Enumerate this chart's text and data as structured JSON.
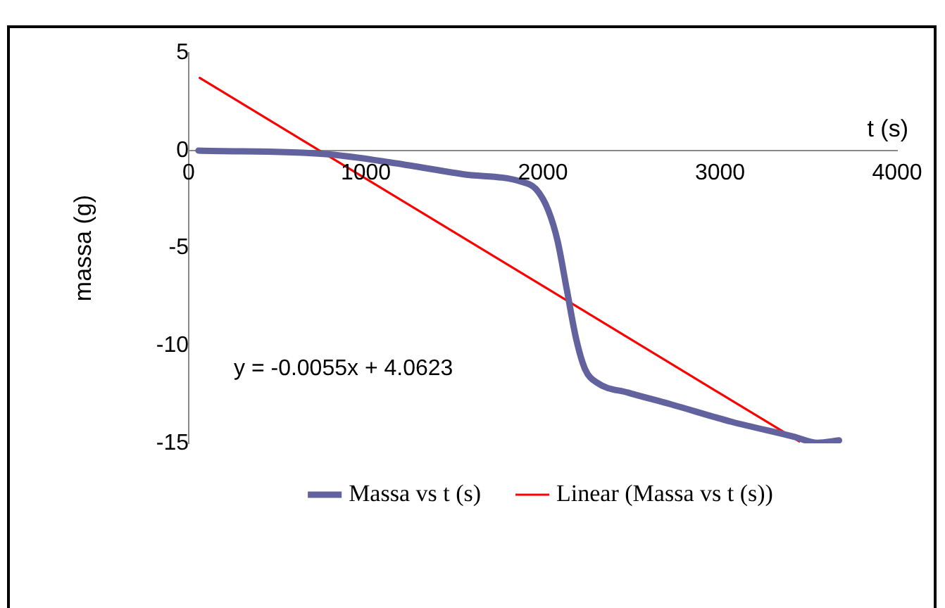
{
  "chart_data": {
    "type": "line",
    "xlabel": "t (s)",
    "ylabel": "massa (g)",
    "xlim": [
      0,
      4000
    ],
    "xticks": [
      0,
      1000,
      2000,
      3000,
      4000
    ],
    "ylim": [
      -15,
      5
    ],
    "yticks": [
      -15,
      -10,
      -5,
      0,
      5
    ],
    "grid": false,
    "legend": "bottom",
    "marker": "none",
    "line_style": "solid",
    "annotations": [
      "y = -0.0055x + 4.0623"
    ],
    "series": [
      {
        "name": "Massa vs t (s)",
        "color": "#62629e",
        "x": [
          55,
          788,
          1168,
          1547,
          1876,
          1962,
          2031,
          2083,
          2135,
          2187,
          2238,
          2307,
          2480,
          2722,
          3067,
          3413,
          3551,
          3672
        ],
        "values": [
          0,
          -0.19,
          -0.65,
          -1.21,
          -1.59,
          -1.99,
          -3.08,
          -4.64,
          -7.13,
          -9.62,
          -11.2,
          -11.9,
          -12.4,
          -13,
          -13.9,
          -14.65,
          -14.97,
          -14.85
        ]
      },
      {
        "name": "Linear (Massa vs t (s))",
        "color": "#ff0000",
        "type": "line",
        "x": [
          62,
          3447
        ],
        "values": [
          3.72,
          -14.9
        ]
      }
    ]
  }
}
